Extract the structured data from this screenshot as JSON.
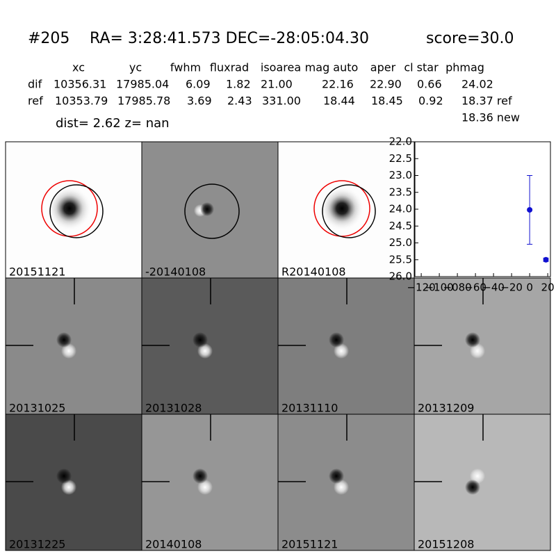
{
  "header": {
    "id": "#205",
    "coords": "RA= 3:28:41.573 DEC=-28:05:04.30",
    "score": "score=30.0"
  },
  "table": {
    "columns": [
      "xc",
      "yc",
      "fwhm",
      "fluxrad",
      "isoarea",
      "mag auto",
      "aper",
      "cl star",
      "phmag"
    ],
    "rows": [
      [
        "dif",
        "10356.31",
        "17985.04",
        "6.09",
        "1.82",
        "21.00",
        "22.16",
        "22.90",
        "0.66",
        "24.02"
      ],
      [
        "ref",
        "10353.79",
        "17985.78",
        "3.69",
        "2.43",
        "331.00",
        "18.44",
        "18.45",
        "0.92",
        "18.37 ref"
      ]
    ],
    "extra": "18.36 new"
  },
  "dist_line": "dist=  2.62      z=   nan",
  "panels": [
    {
      "label": "20151121"
    },
    {
      "label": "-20140108"
    },
    {
      "label": "R20140108"
    },
    {
      "label": "20131025"
    },
    {
      "label": "20131028"
    },
    {
      "label": "20131110"
    },
    {
      "label": "20131209"
    },
    {
      "label": "20131225"
    },
    {
      "label": "20140108"
    },
    {
      "label": "20151121"
    },
    {
      "label": "20151208"
    }
  ],
  "chart_data": {
    "type": "errorbar",
    "x": [
      0,
      18
    ],
    "values": [
      24.02,
      25.5
    ],
    "errors": [
      1.02,
      0.05
    ],
    "color": "#1010d0",
    "xlim": [
      -127,
      23
    ],
    "ylim": [
      26.0,
      22.0
    ],
    "xticks": [
      {
        "value": -120,
        "label": "−120"
      },
      {
        "value": -100,
        "label": "−100"
      },
      {
        "value": -80,
        "label": "−080"
      },
      {
        "value": -60,
        "label": "−60"
      },
      {
        "value": -40,
        "label": "−40"
      },
      {
        "value": -20,
        "label": "−20"
      },
      0,
      20
    ],
    "yticks": [
      {
        "value": 22,
        "label": "22.0"
      },
      {
        "value": 22.5,
        "label": "22.5"
      },
      {
        "value": 23,
        "label": "23.0"
      },
      {
        "value": 23.5,
        "label": "23.5"
      },
      {
        "value": 24,
        "label": "24.0"
      },
      {
        "value": 24.5,
        "label": "24.5"
      },
      {
        "value": 25,
        "label": "25.0"
      },
      {
        "value": 25.5,
        "label": "25.5"
      },
      {
        "value": 26,
        "label": "26.0"
      }
    ]
  }
}
